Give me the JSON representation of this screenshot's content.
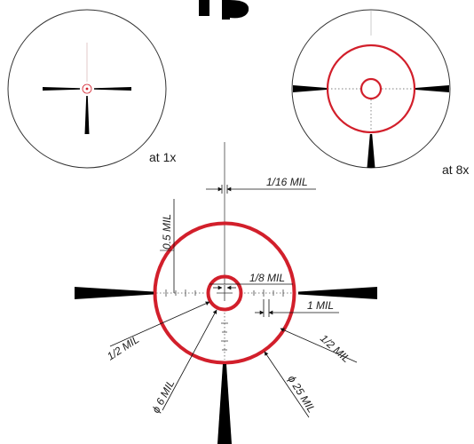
{
  "colors": {
    "reticle_red": "#d21f2b",
    "ink": "#111111",
    "circle_outline": "#333333"
  },
  "views": {
    "view_1x": {
      "magnification_label": "at 1x"
    },
    "view_8x": {
      "magnification_label": "at 8x"
    }
  },
  "dimensions": {
    "post_gap": "1/16 MIL",
    "ring_offset": "0.5 MIL",
    "hash_spacing": "1/8 MIL",
    "tick_spacing": "1 MIL",
    "inner_ring_width": "1/2 MIL",
    "outer_ring_width": "1/2 MIL",
    "inner_ring_diameter": "ϕ 6 MIL",
    "outer_ring_diameter": "ϕ 25 MIL"
  }
}
